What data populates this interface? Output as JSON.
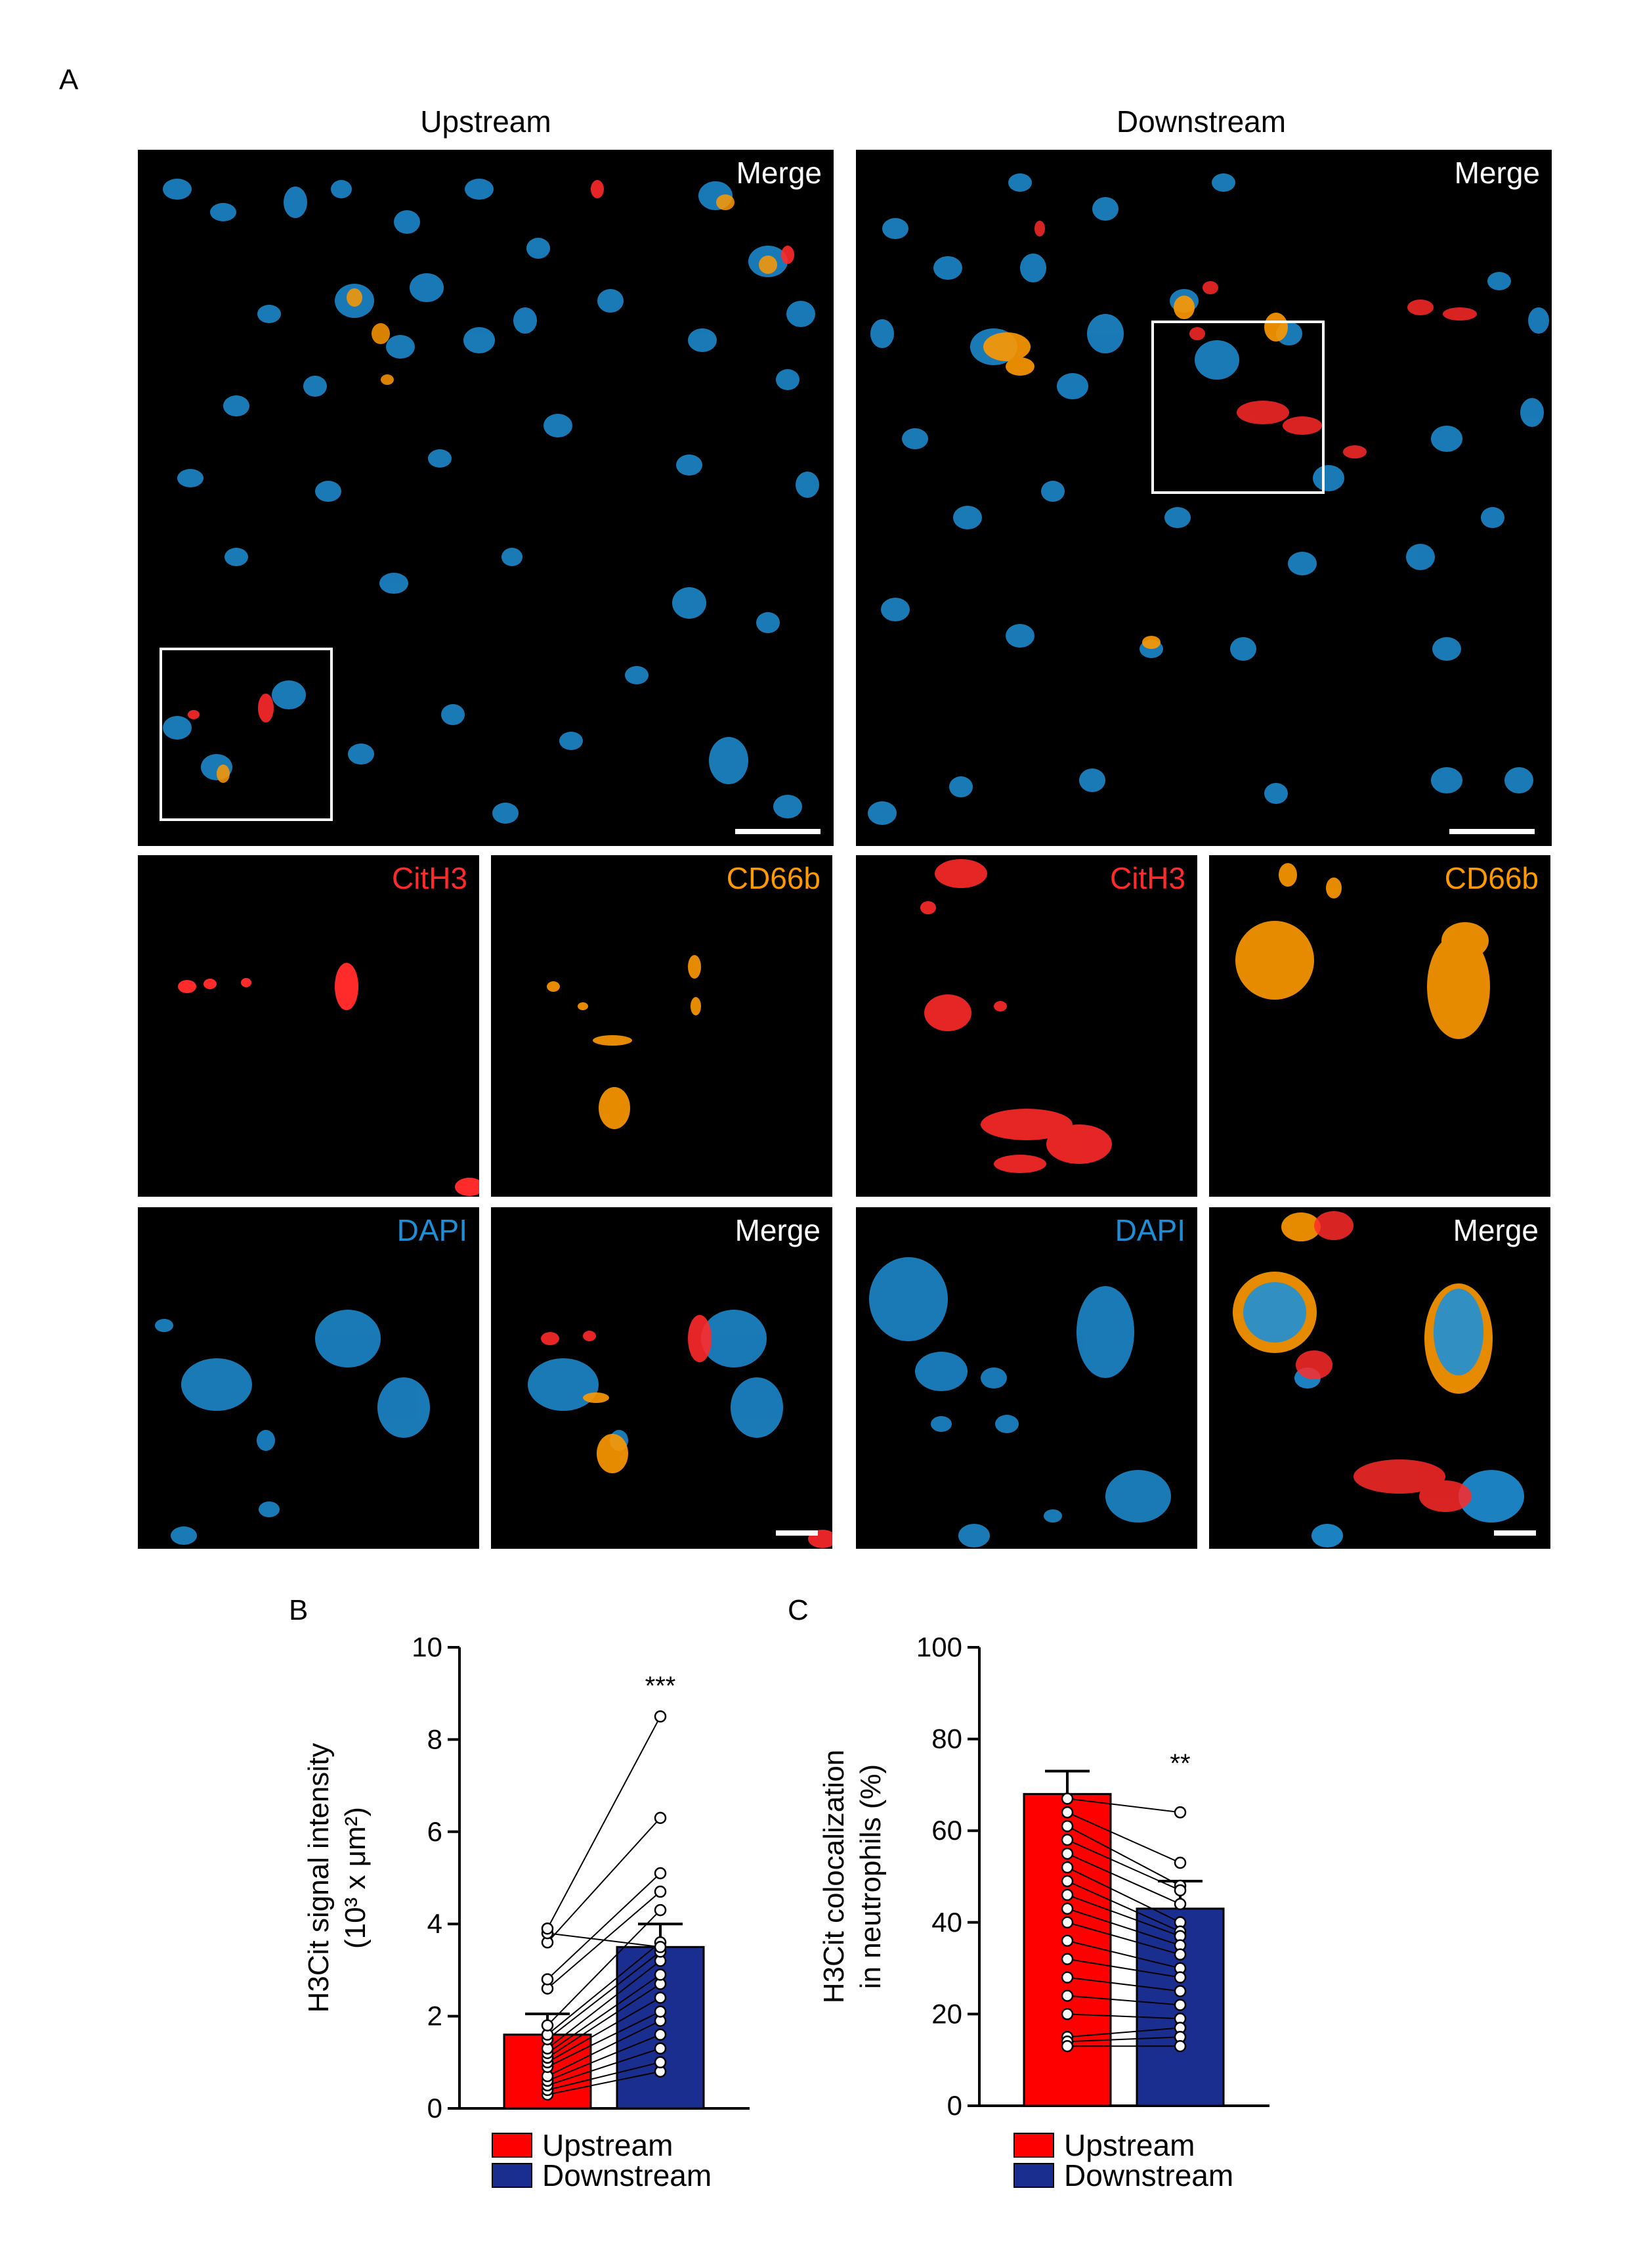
{
  "figure": {
    "panel_a": {
      "letter": "A",
      "col_upstream": "Upstream",
      "col_downstream": "Downstream",
      "merge_label": "Merge",
      "cith3_label": "CitH3",
      "cd66b_label": "CD66b",
      "dapi_label": "DAPI"
    },
    "panel_b": {
      "letter": "B"
    },
    "panel_c": {
      "letter": "C"
    },
    "colors": {
      "upstream": "#ff0000",
      "downstream": "#1a2e8f",
      "cith3": "#ff2a2a",
      "cd66b": "#ff9900",
      "dapi": "#1e8fd6",
      "merge": "#ffffff"
    }
  },
  "chart_data": [
    {
      "type": "bar",
      "panel": "B",
      "categories": [
        "Upstream",
        "Downstream"
      ],
      "values": [
        1.6,
        3.5
      ],
      "errors": [
        0.45,
        0.5
      ],
      "ylabel_line1": "H3Cit signal intensity",
      "ylabel_line2": "(10³ x μm²)",
      "ylim": [
        0,
        10
      ],
      "yticks": [
        0,
        2,
        4,
        6,
        8,
        10
      ],
      "significance": "***",
      "legend": [
        "Upstream",
        "Downstream"
      ],
      "paired_points": [
        [
          0.3,
          0.8
        ],
        [
          0.4,
          1.0
        ],
        [
          0.5,
          1.3
        ],
        [
          0.6,
          1.6
        ],
        [
          0.7,
          1.9
        ],
        [
          0.9,
          2.1
        ],
        [
          1.0,
          2.4
        ],
        [
          1.1,
          2.7
        ],
        [
          1.2,
          2.9
        ],
        [
          1.3,
          3.2
        ],
        [
          1.5,
          3.4
        ],
        [
          1.6,
          3.6
        ],
        [
          1.8,
          4.3
        ],
        [
          2.6,
          4.7
        ],
        [
          2.8,
          5.1
        ],
        [
          3.6,
          6.3
        ],
        [
          3.8,
          3.5
        ],
        [
          3.9,
          8.5
        ]
      ]
    },
    {
      "type": "bar",
      "panel": "C",
      "categories": [
        "Upstream",
        "Downstream"
      ],
      "values": [
        68,
        43
      ],
      "errors": [
        5,
        6
      ],
      "ylabel_line1": "H3Cit colocalization",
      "ylabel_line2": "in neutrophils (%)",
      "ylim": [
        0,
        100
      ],
      "yticks": [
        0,
        20,
        40,
        60,
        80,
        100
      ],
      "significance": "**",
      "legend": [
        "Upstream",
        "Downstream"
      ],
      "paired_points": [
        [
          67,
          64
        ],
        [
          64,
          53
        ],
        [
          61,
          48
        ],
        [
          58,
          47
        ],
        [
          55,
          44
        ],
        [
          52,
          40
        ],
        [
          49,
          38
        ],
        [
          46,
          37
        ],
        [
          43,
          35
        ],
        [
          40,
          33
        ],
        [
          36,
          30
        ],
        [
          32,
          28
        ],
        [
          28,
          25
        ],
        [
          24,
          22
        ],
        [
          20,
          19
        ],
        [
          15,
          17
        ],
        [
          14,
          15
        ],
        [
          13,
          13
        ]
      ]
    }
  ]
}
